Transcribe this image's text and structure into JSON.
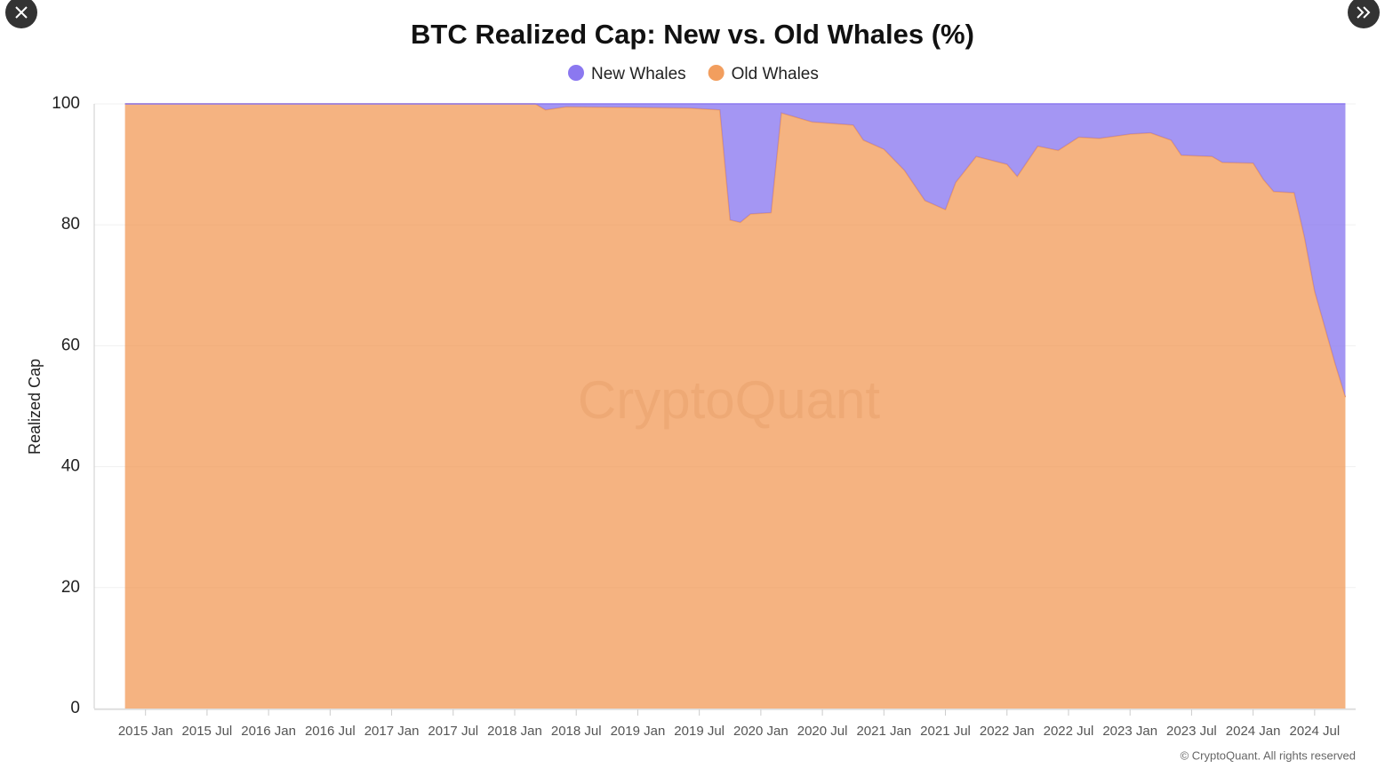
{
  "chart_data": {
    "type": "stacked_area",
    "title": "BTC Realized Cap: New vs. Old Whales (%)",
    "y_label": "Realized Cap",
    "watermark": "CryptoQuant",
    "credit": "© CryptoQuant. All rights reserved",
    "x": [
      "2014-11",
      "2016-06",
      "2018-03",
      "2018-04",
      "2018-06",
      "2019-01",
      "2019-06",
      "2019-09",
      "2019-10",
      "2019-11",
      "2019-12",
      "2020-02",
      "2020-03",
      "2020-06",
      "2020-10",
      "2020-11",
      "2021-01",
      "2021-03",
      "2021-05",
      "2021-07",
      "2021-08",
      "2021-10",
      "2022-01",
      "2022-02",
      "2022-03",
      "2022-04",
      "2022-06",
      "2022-08",
      "2022-10",
      "2023-01",
      "2023-03",
      "2023-05",
      "2023-06",
      "2023-09",
      "2023-10",
      "2024-01",
      "2024-02",
      "2024-03",
      "2024-05",
      "2024-06",
      "2024-07",
      "2024-08",
      "2024-09",
      "2024-10"
    ],
    "series": [
      {
        "name": "New Whales",
        "color": "#8b78f0",
        "values": [
          0,
          0,
          0,
          1,
          0.5,
          0.6,
          0.7,
          1,
          19.2,
          19.6,
          18.2,
          18,
          1.5,
          3,
          3.5,
          6,
          7.5,
          11,
          16,
          17.5,
          13,
          8.7,
          10,
          12,
          9.5,
          7,
          7.7,
          5.5,
          5.7,
          5,
          4.8,
          6,
          8.5,
          8.7,
          9.7,
          9.8,
          12.5,
          14.5,
          14.7,
          22,
          31,
          37,
          43,
          48.5
        ]
      },
      {
        "name": "Old Whales",
        "color": "#f29e5e",
        "values": [
          100,
          100,
          100,
          99,
          99.5,
          99.4,
          99.3,
          99,
          80.8,
          80.4,
          81.8,
          82,
          98.5,
          97,
          96.5,
          94,
          92.5,
          89,
          84,
          82.5,
          87,
          91.3,
          90,
          88,
          90.5,
          93,
          92.3,
          94.5,
          94.3,
          95,
          95.2,
          94,
          91.5,
          91.3,
          90.3,
          90.2,
          87.5,
          85.5,
          85.3,
          78,
          69,
          63,
          57,
          51.5
        ]
      }
    ],
    "xlim": [
      "2014-08",
      "2024-11"
    ],
    "xticks": [
      {
        "value": "2015-01",
        "label": "2015 Jan"
      },
      {
        "value": "2015-07",
        "label": "2015 Jul"
      },
      {
        "value": "2016-01",
        "label": "2016 Jan"
      },
      {
        "value": "2016-07",
        "label": "2016 Jul"
      },
      {
        "value": "2017-01",
        "label": "2017 Jan"
      },
      {
        "value": "2017-07",
        "label": "2017 Jul"
      },
      {
        "value": "2018-01",
        "label": "2018 Jan"
      },
      {
        "value": "2018-07",
        "label": "2018 Jul"
      },
      {
        "value": "2019-01",
        "label": "2019 Jan"
      },
      {
        "value": "2019-07",
        "label": "2019 Jul"
      },
      {
        "value": "2020-01",
        "label": "2020 Jan"
      },
      {
        "value": "2020-07",
        "label": "2020 Jul"
      },
      {
        "value": "2021-01",
        "label": "2021 Jan"
      },
      {
        "value": "2021-07",
        "label": "2021 Jul"
      },
      {
        "value": "2022-01",
        "label": "2022 Jan"
      },
      {
        "value": "2022-07",
        "label": "2022 Jul"
      },
      {
        "value": "2023-01",
        "label": "2023 Jan"
      },
      {
        "value": "2023-07",
        "label": "2023 Jul"
      },
      {
        "value": "2024-01",
        "label": "2024 Jan"
      },
      {
        "value": "2024-07",
        "label": "2024 Jul"
      }
    ],
    "ylim": [
      0,
      100
    ],
    "yticks": [
      0,
      20,
      40,
      60,
      80,
      100
    ],
    "grid": true,
    "legend": "top"
  }
}
